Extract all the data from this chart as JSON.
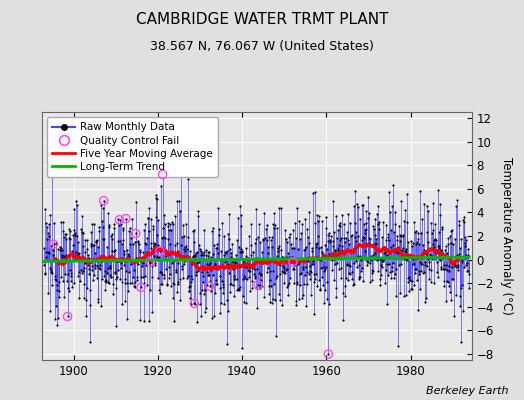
{
  "title": "CAMBRIDGE WATER TRMT PLANT",
  "subtitle": "38.567 N, 76.067 W (United States)",
  "ylabel": "Temperature Anomaly (°C)",
  "attribution": "Berkeley Earth",
  "year_start": 1893,
  "year_end": 1993,
  "ylim": [
    -8.5,
    12.5
  ],
  "yticks": [
    -8,
    -6,
    -4,
    -2,
    0,
    2,
    4,
    6,
    8,
    10,
    12
  ],
  "xticks": [
    1900,
    1920,
    1940,
    1960,
    1980
  ],
  "bg_color": "#e0e0e0",
  "plot_bg_color": "#e8e8e8",
  "raw_line_color": "#4444ff",
  "raw_dot_color": "#000000",
  "qc_fail_color": "#ff44ff",
  "moving_avg_color": "#ff0000",
  "trend_color": "#00bb00",
  "grid_color": "#ffffff",
  "seed": 12345
}
